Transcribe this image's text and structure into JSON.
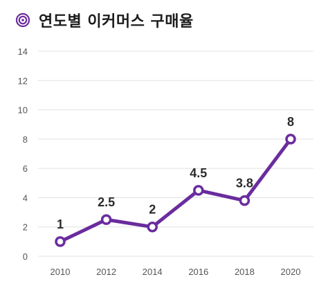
{
  "title": "연도별 이커머스 구매율",
  "colors": {
    "line": "#6a2c9e",
    "point_fill": "#ffffff",
    "grid": "#e0e0e0",
    "icon": "#6a2c9e"
  },
  "chart_data": {
    "type": "line",
    "title": "연도별 이커머스 구매율",
    "categories": [
      "2010",
      "2012",
      "2014",
      "2016",
      "2018",
      "2020"
    ],
    "series": [
      {
        "values": [
          1,
          2.5,
          2,
          4.5,
          3.8,
          8
        ]
      }
    ],
    "data_labels": [
      "1",
      "2.5",
      "2",
      "4.5",
      "3.8",
      "8"
    ],
    "ylim": [
      0,
      14
    ],
    "yticks": [
      "0",
      "2",
      "4",
      "6",
      "8",
      "10",
      "12",
      "14"
    ],
    "xlabel": "",
    "ylabel": "",
    "grid": true,
    "legend": "none"
  }
}
